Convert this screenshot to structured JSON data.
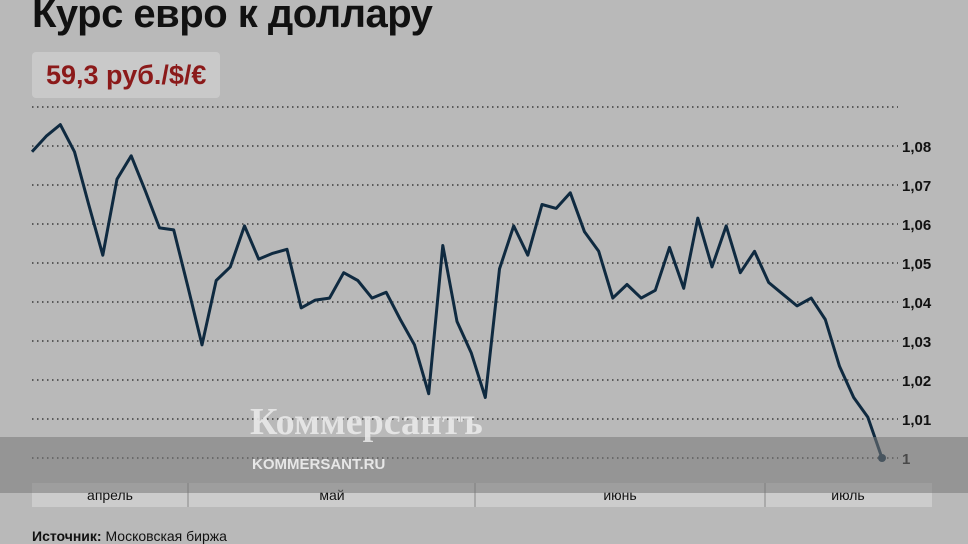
{
  "title": "Курс евро к доллару",
  "badge": "59,3 руб./$/€",
  "watermark": {
    "logo": "Коммерсантъ",
    "url": "KOMMERSANT.RU"
  },
  "source": {
    "label": "Источник:",
    "text": "Московская биржа"
  },
  "colors": {
    "line": "#0f2a40",
    "badge_text": "#8b1a1a",
    "background": "#b9b9b9"
  },
  "chart_data": {
    "type": "line",
    "title": "Курс евро к доллару",
    "ylim": [
      1.0,
      1.09
    ],
    "yticks": [
      {
        "value": 1.0,
        "label": "1"
      },
      {
        "value": 1.01,
        "label": "1,01"
      },
      {
        "value": 1.02,
        "label": "1,02"
      },
      {
        "value": 1.03,
        "label": "1,03"
      },
      {
        "value": 1.04,
        "label": "1,04"
      },
      {
        "value": 1.05,
        "label": "1,05"
      },
      {
        "value": 1.06,
        "label": "1,06"
      },
      {
        "value": 1.07,
        "label": "1,07"
      },
      {
        "value": 1.08,
        "label": "1,08"
      }
    ],
    "grid": true,
    "months": [
      "апрель",
      "май",
      "июнь",
      "июль"
    ],
    "values": [
      1.0785,
      1.0825,
      1.0855,
      1.0785,
      1.065,
      1.052,
      1.0715,
      1.0775,
      1.0685,
      1.059,
      1.0585,
      1.044,
      1.029,
      1.0455,
      1.049,
      1.0595,
      1.051,
      1.0525,
      1.0535,
      1.0385,
      1.0405,
      1.041,
      1.0475,
      1.0455,
      1.041,
      1.0425,
      1.0355,
      1.029,
      1.0165,
      1.0545,
      1.035,
      1.027,
      1.0155,
      1.0485,
      1.0595,
      1.052,
      1.065,
      1.064,
      1.068,
      1.058,
      1.053,
      1.041,
      1.0445,
      1.041,
      1.043,
      1.054,
      1.0435,
      1.0615,
      1.049,
      1.0595,
      1.0475,
      1.053,
      1.045,
      1.042,
      1.039,
      1.041,
      1.0355,
      1.0235,
      1.0155,
      1.0105,
      1.0
    ],
    "last_value": 1.0
  }
}
